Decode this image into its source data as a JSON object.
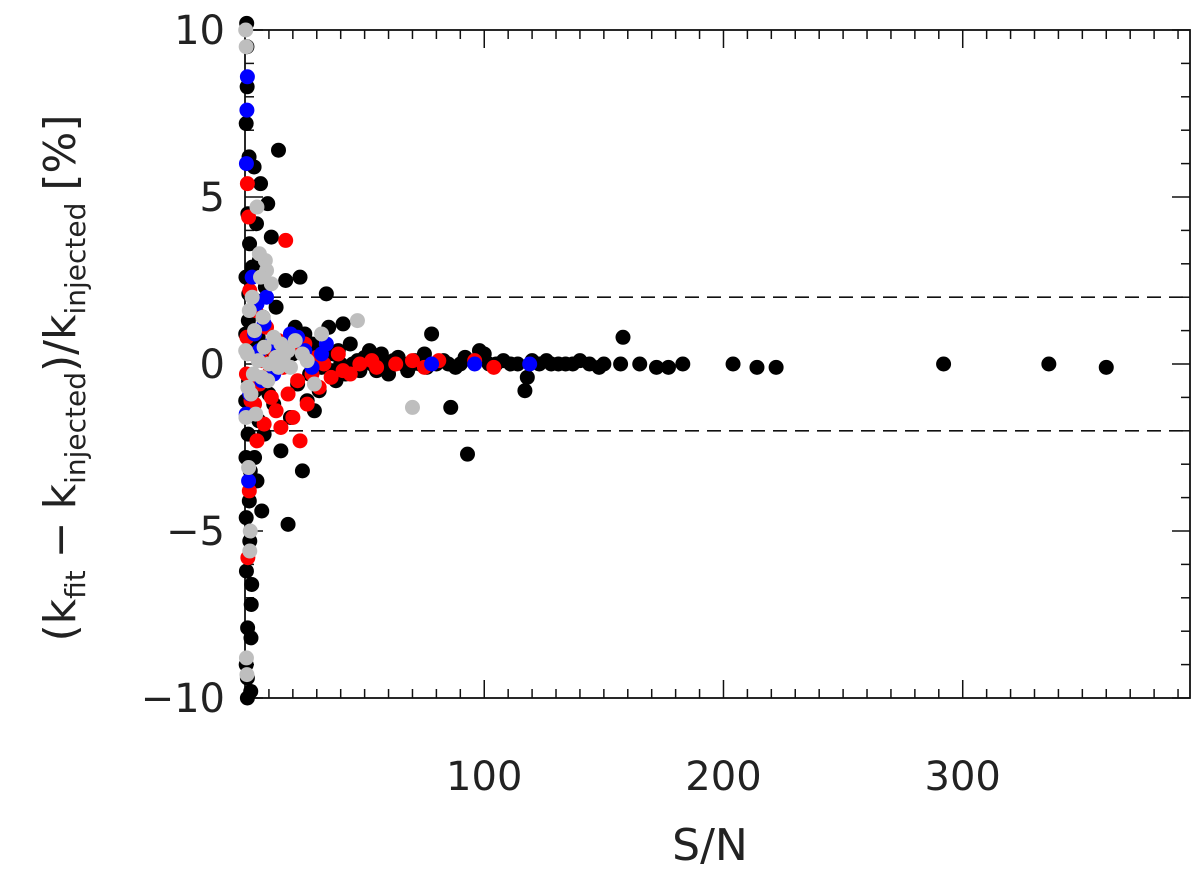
{
  "chart_data": {
    "type": "scatter",
    "title": "",
    "xlabel": "S/N",
    "ylabel": "(k_fit − k_injected)/k_injected [%]",
    "ylabel_parts": {
      "open": "(k",
      "fit": "fit",
      "minus": "−",
      "k": "k",
      "injected": "injected",
      "slash": ")/k",
      "injected2": "injected",
      "unit": "[%]"
    },
    "xlim": [
      0,
      395
    ],
    "ylim": [
      -10,
      10
    ],
    "x_ticks": [
      100,
      200,
      300
    ],
    "x_tick_labels": [
      "100",
      "200",
      "300"
    ],
    "y_ticks": [
      -10,
      -5,
      0,
      5,
      10
    ],
    "y_tick_labels": [
      "−10",
      "−5",
      "0",
      "5",
      "10"
    ],
    "reference_lines": [
      2,
      -2
    ],
    "grid": false,
    "legend": "none",
    "series_colors": {
      "black": "#000000",
      "red": "#ff0000",
      "blue": "#0000ff",
      "gray": "#bebebe"
    },
    "series": [
      {
        "color": "black",
        "points": [
          [
            360,
            -0.1
          ],
          [
            336,
            0
          ],
          [
            292,
            0
          ],
          [
            222,
            -0.1
          ],
          [
            214,
            -0.1
          ],
          [
            204,
            0
          ],
          [
            183,
            0
          ],
          [
            177,
            -0.1
          ],
          [
            172,
            -0.1
          ],
          [
            165,
            0
          ],
          [
            158,
            0.8
          ],
          [
            157,
            0
          ],
          [
            150,
            0
          ],
          [
            148,
            -0.1
          ],
          [
            144,
            0
          ],
          [
            140,
            0.1
          ],
          [
            137,
            0
          ],
          [
            134,
            0
          ],
          [
            131,
            0
          ],
          [
            128,
            0
          ],
          [
            126,
            0.1
          ],
          [
            123,
            0
          ],
          [
            120,
            0.1
          ],
          [
            118,
            -0.4
          ],
          [
            117,
            -0.8
          ],
          [
            114,
            0
          ],
          [
            111,
            0
          ],
          [
            108,
            0.1
          ],
          [
            105,
            0
          ],
          [
            102,
            0
          ],
          [
            100,
            0.3
          ],
          [
            98,
            0.4
          ],
          [
            96,
            0.1
          ],
          [
            93,
            -2.7
          ],
          [
            92,
            0.2
          ],
          [
            90,
            0
          ],
          [
            88,
            -0.1
          ],
          [
            86,
            -1.3
          ],
          [
            85,
            0
          ],
          [
            83,
            0.1
          ],
          [
            80,
            0
          ],
          [
            78,
            0.9
          ],
          [
            76,
            -0.1
          ],
          [
            75,
            0.3
          ],
          [
            73,
            0
          ],
          [
            71,
            0.1
          ],
          [
            70,
            0
          ],
          [
            68,
            -0.2
          ],
          [
            66,
            0
          ],
          [
            64,
            0.2
          ],
          [
            62,
            0.1
          ],
          [
            60,
            -0.3
          ],
          [
            58,
            0
          ],
          [
            57,
            0.3
          ],
          [
            55,
            -0.2
          ],
          [
            53,
            0
          ],
          [
            52,
            0.4
          ],
          [
            50,
            0.2
          ],
          [
            48,
            -0.2
          ],
          [
            47,
            0.1
          ],
          [
            45,
            0
          ],
          [
            44,
            0.6
          ],
          [
            42,
            -0.3
          ],
          [
            41,
            1.2
          ],
          [
            40,
            0
          ],
          [
            39,
            0.4
          ],
          [
            38,
            -0.5
          ],
          [
            37,
            0.3
          ],
          [
            36,
            -0.2
          ],
          [
            35,
            1.1
          ],
          [
            34,
            2.1
          ],
          [
            33,
            0.2
          ],
          [
            32,
            -0.1
          ],
          [
            31,
            -0.8
          ],
          [
            30,
            0.4
          ],
          [
            29,
            -1.4
          ],
          [
            28,
            0.6
          ],
          [
            27,
            -0.3
          ],
          [
            26,
            -1.1
          ],
          [
            25,
            0.9
          ],
          [
            24,
            -3.2
          ],
          [
            23,
            2.6
          ],
          [
            22,
            -0.6
          ],
          [
            21,
            1.1
          ],
          [
            20,
            0.3
          ],
          [
            19,
            -1.6
          ],
          [
            18,
            -4.8
          ],
          [
            17,
            2.5
          ],
          [
            16,
            0.6
          ],
          [
            15,
            -2.6
          ],
          [
            14,
            6.4
          ],
          [
            13,
            1.7
          ],
          [
            12,
            -1.2
          ],
          [
            11,
            3.8
          ],
          [
            10,
            -0.9
          ],
          [
            9.5,
            4.8
          ],
          [
            9,
            0.4
          ],
          [
            8.5,
            2.3
          ],
          [
            8,
            -2.1
          ],
          [
            7.5,
            1.4
          ],
          [
            7,
            -4.4
          ],
          [
            6.5,
            5.4
          ],
          [
            6,
            3.1
          ],
          [
            5.8,
            -1.7
          ],
          [
            5.5,
            0.8
          ],
          [
            5,
            -3.5
          ],
          [
            4.8,
            4.2
          ],
          [
            4.5,
            1.9
          ],
          [
            4.2,
            -0.8
          ],
          [
            4,
            -2.8
          ],
          [
            3.8,
            5.9
          ],
          [
            3.5,
            0.5
          ],
          [
            3.2,
            -1.3
          ],
          [
            3,
            2.9
          ],
          [
            2.8,
            -6.6
          ],
          [
            2.6,
            -7.2
          ],
          [
            2.5,
            -8.2
          ],
          [
            2.4,
            -9.8
          ],
          [
            2.2,
            -3.2
          ],
          [
            2,
            -5.3
          ],
          [
            1.9,
            3.6
          ],
          [
            1.8,
            -4.1
          ],
          [
            1.7,
            6.2
          ],
          [
            1.6,
            2.1
          ],
          [
            1.5,
            -0.5
          ],
          [
            1.4,
            1.3
          ],
          [
            1.3,
            -2.1
          ],
          [
            1.2,
            4.5
          ],
          [
            1.1,
            -7.9
          ],
          [
            1,
            -9.4
          ],
          [
            1,
            -10
          ],
          [
            0.9,
            8.3
          ],
          [
            0.8,
            9.5
          ],
          [
            0.7,
            10.2
          ],
          [
            0.6,
            -6.2
          ],
          [
            0.5,
            -4.6
          ],
          [
            0.5,
            7.2
          ],
          [
            0.5,
            -9
          ],
          [
            0.4,
            2.6
          ],
          [
            0.4,
            -2.8
          ],
          [
            0.3,
            0.9
          ],
          [
            0.3,
            -1.1
          ]
        ]
      },
      {
        "color": "red",
        "points": [
          [
            104,
            -0.1
          ],
          [
            96,
            0.1
          ],
          [
            81,
            0.1
          ],
          [
            75,
            -0.1
          ],
          [
            70,
            0.1
          ],
          [
            63,
            0
          ],
          [
            55,
            -0.1
          ],
          [
            53,
            0.1
          ],
          [
            48,
            0
          ],
          [
            44,
            -0.3
          ],
          [
            41,
            -0.2
          ],
          [
            39,
            0.3
          ],
          [
            36,
            -0.4
          ],
          [
            33,
            0
          ],
          [
            31,
            -0.7
          ],
          [
            30,
            0.2
          ],
          [
            28,
            -0.3
          ],
          [
            26,
            -1.2
          ],
          [
            25,
            0.6
          ],
          [
            23,
            -2.3
          ],
          [
            22,
            -0.5
          ],
          [
            20,
            -1.6
          ],
          [
            19,
            0.5
          ],
          [
            18,
            -0.9
          ],
          [
            17,
            3.7
          ],
          [
            16,
            -0.1
          ],
          [
            15,
            -1.9
          ],
          [
            14,
            0.7
          ],
          [
            13,
            -1.4
          ],
          [
            12,
            0.4
          ],
          [
            11,
            -1
          ],
          [
            10,
            -0.3
          ],
          [
            9,
            1.1
          ],
          [
            8,
            -1.8
          ],
          [
            7,
            0.1
          ],
          [
            6,
            -0.6
          ],
          [
            5,
            -2.3
          ],
          [
            4.5,
            1.6
          ],
          [
            4,
            -1.2
          ],
          [
            3.5,
            0.3
          ],
          [
            3,
            -0.4
          ],
          [
            2.5,
            -1.1
          ],
          [
            2,
            2.2
          ],
          [
            1.8,
            -3.8
          ],
          [
            1.5,
            4.4
          ],
          [
            1.2,
            -5.8
          ],
          [
            1,
            5.4
          ],
          [
            0.8,
            0.8
          ],
          [
            0.6,
            -0.3
          ]
        ]
      },
      {
        "color": "blue",
        "points": [
          [
            119,
            0
          ],
          [
            96,
            0
          ],
          [
            78,
            0
          ],
          [
            34,
            0.6
          ],
          [
            32,
            0.3
          ],
          [
            28,
            -0.1
          ],
          [
            25,
            0.4
          ],
          [
            22,
            0.8
          ],
          [
            19,
            0.9
          ],
          [
            17,
            0.5
          ],
          [
            14,
            0.2
          ],
          [
            12,
            -0.3
          ],
          [
            11,
            0.6
          ],
          [
            9,
            2
          ],
          [
            8,
            1.2
          ],
          [
            7,
            -0.5
          ],
          [
            6,
            0.4
          ],
          [
            5,
            1.8
          ],
          [
            4,
            0.9
          ],
          [
            3,
            2.6
          ],
          [
            2,
            -0.9
          ],
          [
            1.5,
            -3.5
          ],
          [
            1,
            8.6
          ],
          [
            0.8,
            7.6
          ],
          [
            0.6,
            6
          ],
          [
            0.5,
            -1.5
          ]
        ]
      },
      {
        "color": "gray",
        "points": [
          [
            70,
            -1.3
          ],
          [
            47,
            1.3
          ],
          [
            32,
            0.9
          ],
          [
            29,
            -0.6
          ],
          [
            26,
            0.1
          ],
          [
            24,
            0.3
          ],
          [
            21,
            0.7
          ],
          [
            19,
            -0.1
          ],
          [
            18,
            0.4
          ],
          [
            16,
            0.2
          ],
          [
            15,
            0.6
          ],
          [
            14,
            -0.1
          ],
          [
            13,
            0.2
          ],
          [
            12,
            0.8
          ],
          [
            11,
            2.4
          ],
          [
            10,
            0
          ],
          [
            9.5,
            -0.5
          ],
          [
            9,
            2.8
          ],
          [
            8.5,
            3.1
          ],
          [
            8,
            0.5
          ],
          [
            7.5,
            1.4
          ],
          [
            7,
            -0.4
          ],
          [
            6.5,
            2.6
          ],
          [
            6,
            3.3
          ],
          [
            5.5,
            0.1
          ],
          [
            5,
            4.7
          ],
          [
            4.5,
            -1.5
          ],
          [
            4,
            1
          ],
          [
            3.5,
            -0.3
          ],
          [
            3,
            2
          ],
          [
            2.5,
            -0.9
          ],
          [
            2.2,
            -5
          ],
          [
            2,
            -5.6
          ],
          [
            1.8,
            1.6
          ],
          [
            1.5,
            -3.1
          ],
          [
            1.2,
            -0.7
          ],
          [
            1,
            0.3
          ],
          [
            0.8,
            -9.3
          ],
          [
            0.6,
            -8.8
          ],
          [
            0.5,
            9.5
          ],
          [
            0.4,
            -1.6
          ],
          [
            0.3,
            10
          ],
          [
            0.3,
            0.4
          ]
        ]
      }
    ]
  }
}
